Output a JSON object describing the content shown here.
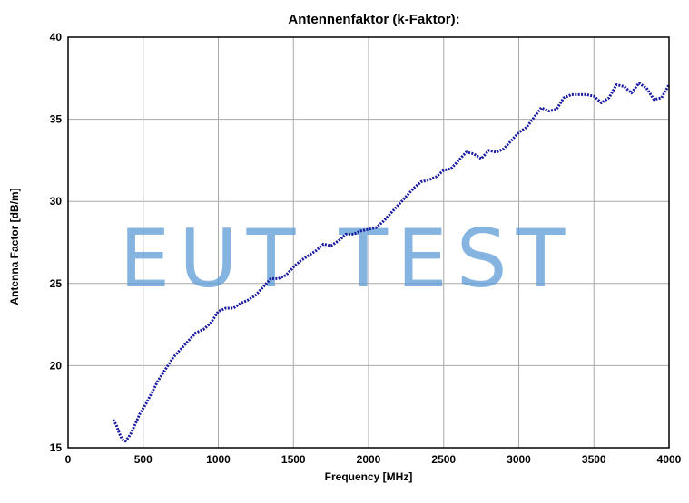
{
  "chart_data": {
    "type": "line",
    "title": "Antennenfaktor (k-Faktor):",
    "xlabel": "Frequency [MHz]",
    "ylabel": "Antenna Factor [dB/m]",
    "xlim": [
      0,
      4000
    ],
    "ylim": [
      15,
      40
    ],
    "x_ticks": [
      0,
      500,
      1000,
      1500,
      2000,
      2500,
      3000,
      3500,
      4000
    ],
    "y_ticks": [
      15,
      20,
      25,
      30,
      35,
      40
    ],
    "grid": true,
    "legend": "none",
    "watermark": "EUT TEST",
    "series": [
      {
        "color": "#1a1aa0",
        "x": [
          300,
          320,
          340,
          360,
          380,
          400,
          420,
          450,
          480,
          520,
          560,
          600,
          650,
          700,
          750,
          800,
          850,
          900,
          950,
          1000,
          1050,
          1100,
          1150,
          1200,
          1250,
          1300,
          1350,
          1400,
          1450,
          1500,
          1550,
          1600,
          1650,
          1700,
          1750,
          1800,
          1850,
          1900,
          1950,
          2000,
          2050,
          2100,
          2150,
          2200,
          2250,
          2300,
          2350,
          2400,
          2450,
          2500,
          2550,
          2600,
          2650,
          2700,
          2750,
          2800,
          2850,
          2900,
          2950,
          3000,
          3050,
          3100,
          3150,
          3200,
          3250,
          3300,
          3350,
          3400,
          3450,
          3500,
          3550,
          3600,
          3650,
          3700,
          3750,
          3800,
          3850,
          3900,
          3950,
          4000
        ],
        "y": [
          16.7,
          16.4,
          15.9,
          15.5,
          15.4,
          15.6,
          15.9,
          16.5,
          17.1,
          17.7,
          18.4,
          19.1,
          19.8,
          20.5,
          21.0,
          21.5,
          22.0,
          22.2,
          22.6,
          23.3,
          23.5,
          23.5,
          23.8,
          24.0,
          24.3,
          24.8,
          25.3,
          25.3,
          25.5,
          26.0,
          26.4,
          26.7,
          27.0,
          27.4,
          27.3,
          27.6,
          28.0,
          28.0,
          28.2,
          28.3,
          28.4,
          28.8,
          29.3,
          29.8,
          30.3,
          30.8,
          31.2,
          31.3,
          31.5,
          31.9,
          32.0,
          32.5,
          33.0,
          32.9,
          32.6,
          33.1,
          33.0,
          33.2,
          33.7,
          34.2,
          34.5,
          35.1,
          35.7,
          35.5,
          35.6,
          36.3,
          36.5,
          36.5,
          36.5,
          36.4,
          36.0,
          36.3,
          37.1,
          37.0,
          36.6,
          37.2,
          36.9,
          36.2,
          36.3,
          37.1
        ]
      }
    ]
  }
}
